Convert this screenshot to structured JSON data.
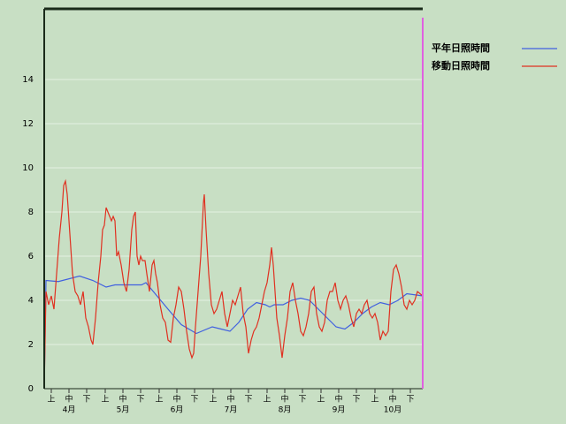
{
  "chart_data": {
    "type": "line",
    "xlim": [
      0,
      214
    ],
    "ylim": [
      0,
      17.2
    ],
    "yticks": [
      0,
      2,
      4,
      6,
      8,
      10,
      12,
      14
    ],
    "grid": true,
    "xticks": [
      {
        "value": 4,
        "label": "上"
      },
      {
        "value": 14,
        "label": "中"
      },
      {
        "value": 24,
        "label": "下"
      },
      {
        "value": 34.5,
        "label": "上"
      },
      {
        "value": 44.5,
        "label": "中"
      },
      {
        "value": 54.5,
        "label": "下"
      },
      {
        "value": 65,
        "label": "上"
      },
      {
        "value": 75,
        "label": "中"
      },
      {
        "value": 85,
        "label": "下"
      },
      {
        "value": 95.5,
        "label": "上"
      },
      {
        "value": 105.5,
        "label": "中"
      },
      {
        "value": 115.5,
        "label": "下"
      },
      {
        "value": 126,
        "label": "上"
      },
      {
        "value": 136,
        "label": "中"
      },
      {
        "value": 146,
        "label": "下"
      },
      {
        "value": 156.5,
        "label": "上"
      },
      {
        "value": 166.5,
        "label": "中"
      },
      {
        "value": 176.5,
        "label": "下"
      },
      {
        "value": 187,
        "label": "上"
      },
      {
        "value": 197,
        "label": "中"
      },
      {
        "value": 207,
        "label": "下"
      }
    ],
    "months": [
      "4月",
      "5月",
      "6月",
      "7月",
      "8月",
      "9月",
      "10月"
    ],
    "series": [
      {
        "name": "平年日照時間",
        "color": "#4060e0",
        "x": [
          0,
          1,
          8,
          20,
          27.5,
          35,
          40,
          55,
          57.5,
          70,
          77.5,
          86,
          95,
          100,
          105,
          110,
          115,
          120,
          125,
          127.5,
          130,
          135,
          140,
          145,
          150,
          155,
          160,
          165,
          170,
          175,
          180,
          185,
          190,
          195,
          200,
          205,
          214
        ],
        "values": [
          0,
          4.9,
          4.85,
          5.1,
          4.9,
          4.6,
          4.7,
          4.7,
          4.8,
          3.6,
          2.9,
          2.5,
          2.8,
          2.7,
          2.6,
          3.0,
          3.6,
          3.9,
          3.8,
          3.7,
          3.8,
          3.8,
          4.0,
          4.1,
          4.0,
          3.6,
          3.2,
          2.8,
          2.7,
          3.0,
          3.4,
          3.7,
          3.9,
          3.8,
          4.0,
          4.3,
          4.2
        ]
      },
      {
        "name": "移動日照時間",
        "color": "#e03020",
        "x": [
          0,
          1,
          2.5,
          4,
          5.5,
          7,
          8.5,
          10,
          11,
          12,
          13,
          14,
          15,
          16,
          17.5,
          19,
          20.5,
          22,
          23.5,
          25,
          26.5,
          27.5,
          29,
          30.5,
          32,
          33,
          34,
          35,
          36,
          37,
          38,
          39,
          40,
          41,
          42,
          43.5,
          45,
          46.5,
          48,
          49.5,
          50.5,
          51.5,
          52.5,
          53.5,
          54.5,
          55.5,
          57,
          58,
          59.5,
          61,
          62,
          63,
          64,
          65.5,
          67,
          68.5,
          70,
          71.5,
          73,
          74.5,
          76,
          77.5,
          79,
          80.5,
          82,
          83.5,
          84.5,
          85.5,
          87,
          88.5,
          90,
          90.5,
          91.5,
          93,
          94.5,
          96,
          97.5,
          99,
          100.5,
          102,
          103.5,
          105,
          106.5,
          108,
          109.5,
          111,
          112.5,
          114,
          115.5,
          117,
          118.5,
          120,
          121.5,
          123,
          124.5,
          126,
          127.5,
          128.5,
          129.5,
          130.5,
          131.5,
          133,
          134.5,
          136,
          137.5,
          139,
          140.5,
          142,
          143.5,
          145,
          146.5,
          148,
          149.5,
          151,
          152.5,
          154,
          155.5,
          157,
          158.5,
          160,
          161.5,
          163,
          164.5,
          166,
          167.5,
          169,
          170.5,
          172,
          173.5,
          175,
          176.5,
          178,
          179.5,
          181,
          182.5,
          184,
          185.5,
          187,
          188.5,
          190,
          191.5,
          193,
          194.5,
          196,
          197.5,
          199,
          200.5,
          202,
          203.5,
          205,
          206.5,
          208,
          209.5,
          211,
          214
        ],
        "values": [
          0,
          4.4,
          3.8,
          4.2,
          3.6,
          5.2,
          6.8,
          8.0,
          9.2,
          9.4,
          8.8,
          7.6,
          6.4,
          5.2,
          4.4,
          4.2,
          3.8,
          4.4,
          3.2,
          2.8,
          2.2,
          2.0,
          3.2,
          4.8,
          6.0,
          7.2,
          7.4,
          8.2,
          8.0,
          7.8,
          7.6,
          7.8,
          7.6,
          6.0,
          6.2,
          5.6,
          4.8,
          4.4,
          5.4,
          7.2,
          7.8,
          8.0,
          6.0,
          5.6,
          6.0,
          5.8,
          5.8,
          5.2,
          4.4,
          5.6,
          5.8,
          5.2,
          4.8,
          3.8,
          3.2,
          3.0,
          2.2,
          2.1,
          3.2,
          3.8,
          4.6,
          4.4,
          3.6,
          2.6,
          1.8,
          1.4,
          1.6,
          2.8,
          4.4,
          6.0,
          8.4,
          8.8,
          7.2,
          5.2,
          3.8,
          3.4,
          3.6,
          4.0,
          4.4,
          3.4,
          2.8,
          3.4,
          4.0,
          3.8,
          4.2,
          4.6,
          3.4,
          2.8,
          1.6,
          2.2,
          2.6,
          2.8,
          3.2,
          3.8,
          4.4,
          4.8,
          5.6,
          6.4,
          5.6,
          4.4,
          3.2,
          2.4,
          1.4,
          2.4,
          3.2,
          4.4,
          4.8,
          4.0,
          3.4,
          2.6,
          2.4,
          2.8,
          3.4,
          4.4,
          4.6,
          3.4,
          2.8,
          2.6,
          3.0,
          4.0,
          4.4,
          4.4,
          4.8,
          4.0,
          3.6,
          4.0,
          4.2,
          3.8,
          3.2,
          2.8,
          3.4,
          3.6,
          3.4,
          3.8,
          4.0,
          3.4,
          3.2,
          3.4,
          3.0,
          2.2,
          2.6,
          2.4,
          2.6,
          4.4,
          5.4,
          5.6,
          5.2,
          4.6,
          3.8,
          3.6,
          4.0,
          3.8,
          4.0,
          4.4,
          4.2
        ]
      }
    ]
  }
}
